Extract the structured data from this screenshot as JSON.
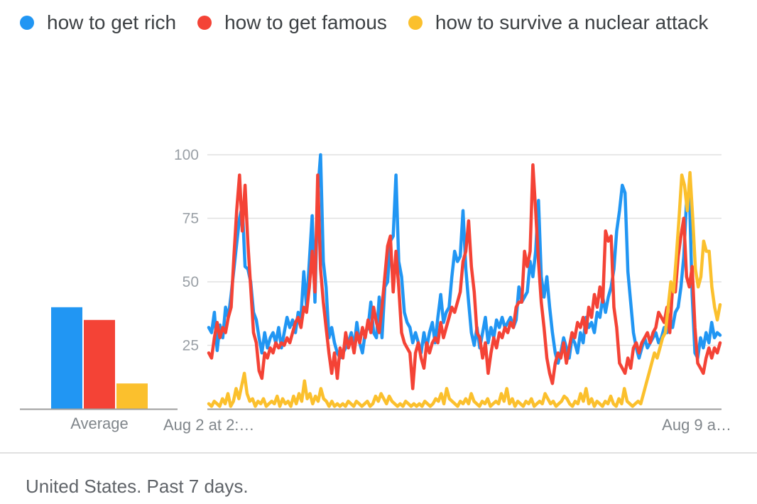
{
  "legend": [
    {
      "label": "how to get rich",
      "color": "#2196f3"
    },
    {
      "label": "how to get famous",
      "color": "#f44336"
    },
    {
      "label": "how to survive a nuclear attack",
      "color": "#fbc02d"
    }
  ],
  "footer": {
    "text": "United States. Past 7 days."
  },
  "chart_data": [
    {
      "type": "bar",
      "xlabel": "Average",
      "categories": [
        "how to get rich",
        "how to get famous",
        "how to survive a nuclear attack"
      ],
      "values": [
        40,
        35,
        10
      ],
      "colors": [
        "#2196f3",
        "#f44336",
        "#fbc02d"
      ],
      "ylim": [
        0,
        100
      ]
    },
    {
      "type": "line",
      "ylim": [
        0,
        100
      ],
      "yticks": [
        25,
        50,
        75,
        100
      ],
      "xtick_labels": [
        "Aug 2 at 2:…",
        "Aug 9 a…"
      ],
      "grid": true,
      "series": [
        {
          "name": "how to get rich",
          "color": "#2196f3",
          "values": [
            32,
            30,
            38,
            23,
            33,
            28,
            40,
            36,
            45,
            55,
            65,
            75,
            80,
            56,
            55,
            50,
            38,
            35,
            28,
            22,
            30,
            24,
            28,
            30,
            26,
            32,
            24,
            30,
            36,
            32,
            35,
            30,
            38,
            36,
            54,
            40,
            58,
            76,
            42,
            85,
            100,
            58,
            48,
            28,
            32,
            26,
            22,
            20,
            22,
            24,
            26,
            30,
            24,
            34,
            26,
            22,
            30,
            32,
            42,
            30,
            28,
            44,
            28,
            48,
            50,
            66,
            68,
            92,
            58,
            52,
            38,
            34,
            32,
            26,
            30,
            26,
            22,
            30,
            24,
            30,
            34,
            26,
            36,
            45,
            34,
            38,
            40,
            52,
            62,
            58,
            60,
            78,
            55,
            42,
            30,
            25,
            32,
            24,
            30,
            36,
            26,
            32,
            28,
            35,
            32,
            36,
            32,
            34,
            36,
            32,
            35,
            48,
            42,
            44,
            46,
            58,
            52,
            62,
            82,
            52,
            44,
            52,
            40,
            30,
            22,
            18,
            22,
            28,
            24,
            20,
            28,
            26,
            22,
            30,
            26,
            36,
            32,
            34,
            30,
            38,
            36,
            44,
            38,
            44,
            48,
            55,
            70,
            78,
            88,
            85,
            54,
            42,
            30,
            24,
            20,
            24,
            28,
            24,
            26,
            28,
            30,
            26,
            28,
            32,
            30,
            36,
            32,
            38,
            40,
            48,
            60,
            82,
            86,
            45,
            22,
            20,
            28,
            24,
            30,
            26,
            34,
            28,
            30,
            29
          ]
        },
        {
          "name": "how to get famous",
          "color": "#f44336",
          "values": [
            22,
            20,
            28,
            34,
            28,
            32,
            30,
            36,
            40,
            60,
            78,
            92,
            70,
            88,
            65,
            48,
            30,
            26,
            15,
            12,
            22,
            20,
            24,
            22,
            26,
            24,
            26,
            25,
            28,
            26,
            30,
            34,
            36,
            32,
            40,
            38,
            48,
            62,
            46,
            92,
            55,
            42,
            32,
            22,
            14,
            22,
            12,
            24,
            20,
            30,
            24,
            28,
            22,
            30,
            26,
            32,
            28,
            35,
            30,
            40,
            34,
            30,
            40,
            52,
            64,
            68,
            46,
            62,
            48,
            30,
            26,
            24,
            22,
            8,
            22,
            26,
            20,
            16,
            26,
            22,
            26,
            28,
            26,
            34,
            28,
            32,
            36,
            40,
            38,
            42,
            46,
            58,
            62,
            74,
            56,
            46,
            30,
            28,
            20,
            26,
            14,
            22,
            28,
            24,
            30,
            28,
            32,
            30,
            34,
            32,
            40,
            42,
            42,
            62,
            56,
            62,
            96,
            78,
            58,
            42,
            32,
            20,
            14,
            10,
            18,
            22,
            20,
            26,
            18,
            24,
            30,
            28,
            34,
            32,
            36,
            30,
            40,
            36,
            45,
            40,
            48,
            42,
            70,
            66,
            68,
            40,
            32,
            18,
            16,
            14,
            20,
            16,
            24,
            26,
            22,
            26,
            28,
            30,
            26,
            30,
            32,
            38,
            36,
            34,
            40,
            30,
            48,
            46,
            60,
            68,
            75,
            52,
            48,
            56,
            32,
            18,
            16,
            14,
            20,
            24,
            20,
            24,
            22,
            26
          ]
        },
        {
          "name": "how to survive a nuclear attack",
          "color": "#fbc02d",
          "values": [
            2,
            1,
            3,
            2,
            1,
            4,
            2,
            6,
            1,
            3,
            8,
            4,
            9,
            14,
            6,
            3,
            4,
            1,
            3,
            2,
            4,
            1,
            2,
            3,
            2,
            5,
            1,
            4,
            2,
            3,
            1,
            5,
            2,
            6,
            3,
            11,
            4,
            6,
            2,
            5,
            3,
            8,
            4,
            3,
            1,
            3,
            1,
            2,
            1,
            2,
            1,
            3,
            2,
            1,
            3,
            2,
            1,
            2,
            3,
            1,
            2,
            5,
            3,
            6,
            4,
            2,
            5,
            3,
            2,
            1,
            2,
            1,
            3,
            2,
            1,
            2,
            1,
            2,
            1,
            3,
            2,
            1,
            2,
            4,
            3,
            6,
            2,
            8,
            4,
            3,
            2,
            1,
            3,
            2,
            4,
            2,
            6,
            3,
            2,
            1,
            3,
            2,
            4,
            1,
            2,
            3,
            2,
            6,
            3,
            8,
            2,
            4,
            1,
            3,
            2,
            1,
            3,
            2,
            4,
            1,
            2,
            3,
            2,
            6,
            4,
            2,
            3,
            1,
            2,
            3,
            5,
            4,
            2,
            1,
            3,
            2,
            6,
            3,
            8,
            2,
            4,
            1,
            3,
            2,
            1,
            3,
            2,
            5,
            2,
            1,
            4,
            2,
            8,
            3,
            2,
            1,
            2,
            3,
            2,
            6,
            10,
            14,
            18,
            22,
            20,
            24,
            28,
            30,
            40,
            50,
            46,
            60,
            75,
            92,
            88,
            78,
            93,
            75,
            55,
            48,
            52,
            66,
            62,
            62,
            48,
            40,
            35,
            41
          ]
        }
      ]
    }
  ]
}
